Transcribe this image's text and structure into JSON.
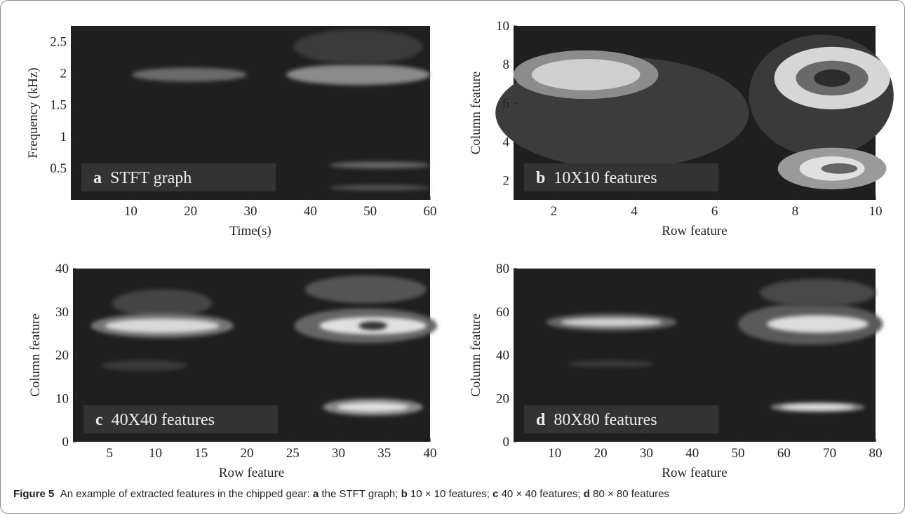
{
  "panels": [
    {
      "letter": "a",
      "label": "STFT graph",
      "xlabel": "Time(s)",
      "ylabel": "Frequency (kHz)",
      "xlim": [
        0,
        60
      ],
      "xticks": [
        10,
        20,
        30,
        40,
        50,
        60
      ],
      "ylim": [
        0,
        2.75
      ],
      "yticks": [
        0.5,
        1,
        1.5,
        2,
        2.5
      ]
    },
    {
      "letter": "b",
      "label": "10X10 features",
      "xlabel": "Row feature",
      "ylabel": "Column feature",
      "xlim": [
        1,
        10
      ],
      "xticks": [
        2,
        4,
        6,
        8,
        10
      ],
      "ylim": [
        1,
        10
      ],
      "yticks": [
        2,
        4,
        6,
        8,
        10
      ]
    },
    {
      "letter": "c",
      "label": "40X40 features",
      "xlabel": "Row feature",
      "ylabel": "Column feature",
      "xlim": [
        1,
        40
      ],
      "xticks": [
        5,
        10,
        15,
        20,
        25,
        30,
        35,
        40
      ],
      "ylim": [
        0,
        40
      ],
      "yticks": [
        0,
        10,
        20,
        30,
        40
      ]
    },
    {
      "letter": "d",
      "label": "80X80 features",
      "xlabel": "Row feature",
      "ylabel": "Column feature",
      "xlim": [
        1,
        80
      ],
      "xticks": [
        10,
        20,
        30,
        40,
        50,
        60,
        70,
        80
      ],
      "ylim": [
        0,
        80
      ],
      "yticks": [
        0,
        20,
        40,
        60,
        80
      ]
    }
  ],
  "caption": {
    "figure": "Figure 5",
    "parts": [
      {
        "text": "An example of extracted features in the chipped gear: "
      },
      {
        "bold": "a",
        "text": " the STFT graph; "
      },
      {
        "bold": "b",
        "text": " 10 × 10 features; "
      },
      {
        "bold": "c",
        "text": " 40 × 40 features; "
      },
      {
        "bold": "d",
        "text": " 80 × 80 features"
      }
    ]
  }
}
